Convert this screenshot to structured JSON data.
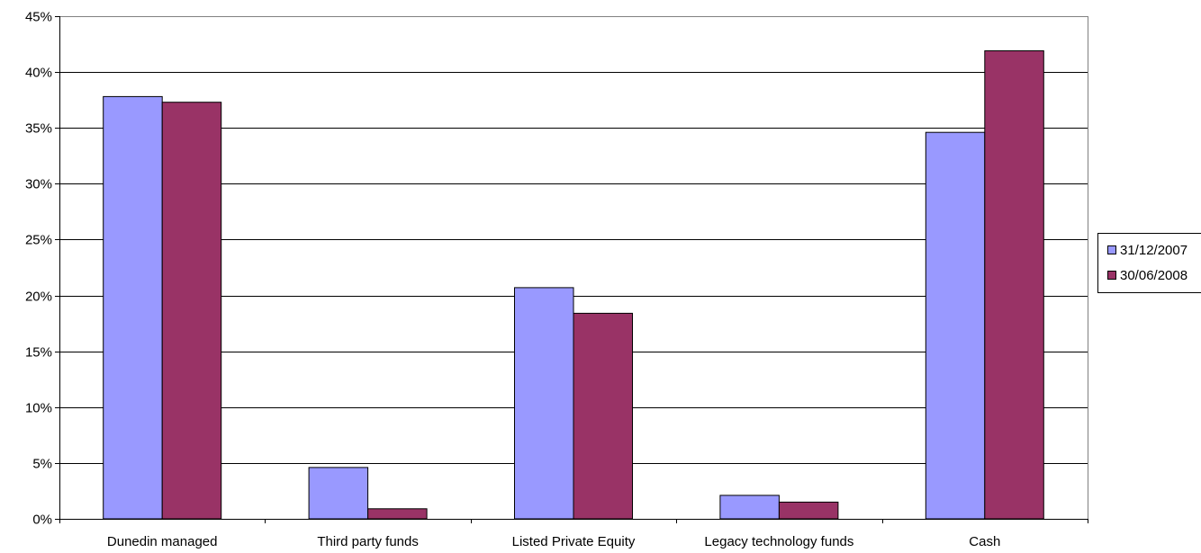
{
  "chart_data": {
    "type": "bar",
    "title": "",
    "xlabel": "",
    "ylabel": "",
    "categories": [
      "Dunedin managed",
      "Third party funds",
      "Listed Private Equity",
      "Legacy technology funds",
      "Cash"
    ],
    "series": [
      {
        "name": "31/12/2007",
        "color": "#9999ff",
        "values": [
          37.8,
          4.6,
          20.7,
          2.1,
          34.6
        ]
      },
      {
        "name": "30/06/2008",
        "color": "#993366",
        "values": [
          37.3,
          0.9,
          18.4,
          1.5,
          41.9
        ]
      }
    ],
    "ylim": [
      0,
      45
    ],
    "yticks": [
      "0%",
      "5%",
      "10%",
      "15%",
      "20%",
      "25%",
      "30%",
      "35%",
      "40%",
      "45%"
    ],
    "grid": true,
    "legend_position": "right"
  }
}
